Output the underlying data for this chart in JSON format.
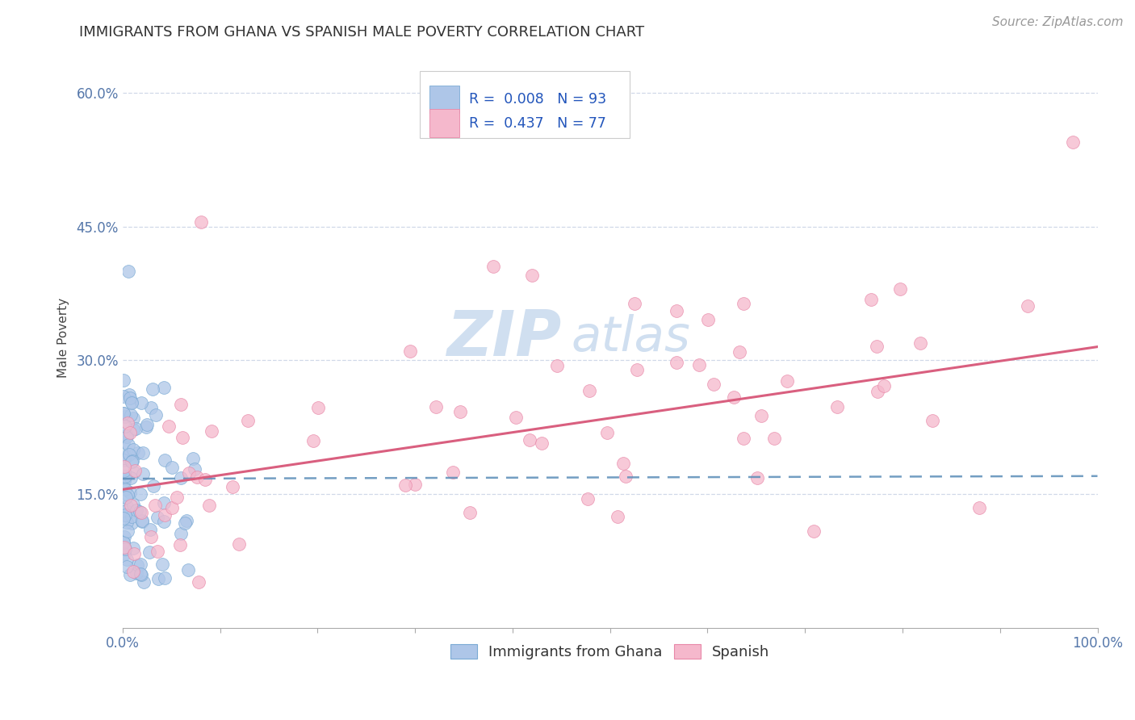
{
  "title": "IMMIGRANTS FROM GHANA VS SPANISH MALE POVERTY CORRELATION CHART",
  "source": "Source: ZipAtlas.com",
  "ylabel": "Male Poverty",
  "xlim": [
    0,
    1.0
  ],
  "ylim": [
    0.0,
    0.65
  ],
  "yticks": [
    0.15,
    0.3,
    0.45,
    0.6
  ],
  "yticklabels": [
    "15.0%",
    "30.0%",
    "45.0%",
    "60.0%"
  ],
  "legend_labels": [
    "Immigrants from Ghana",
    "Spanish"
  ],
  "blue_R": "0.008",
  "blue_N": "93",
  "pink_R": "0.437",
  "pink_N": "77",
  "blue_color": "#aec6e8",
  "pink_color": "#f5b8cc",
  "blue_edge_color": "#7aaad4",
  "pink_edge_color": "#e888a8",
  "blue_line_color": "#5b8db8",
  "pink_line_color": "#d95f7f",
  "watermark_color": "#d0dff0",
  "title_color": "#333333",
  "source_color": "#999999",
  "tick_color": "#5577aa",
  "grid_color": "#d0d8e8",
  "axis_color": "#cccccc",
  "legend_border_color": "#cccccc",
  "legend_text_color": "#333333",
  "legend_value_color": "#2255bb"
}
